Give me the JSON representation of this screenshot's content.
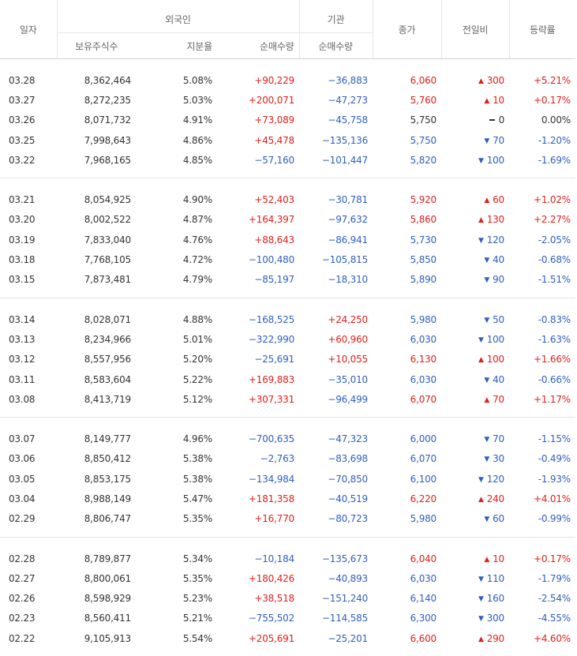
{
  "header": {
    "date": "일자",
    "foreign": "외국인",
    "institution": "기관",
    "holdings": "보유주식수",
    "share_ratio": "지분율",
    "net_buy_foreign": "순매수량",
    "net_buy_inst": "순매수량",
    "close": "종가",
    "change": "전일비",
    "rate": "등락률"
  },
  "colors": {
    "up": "#e0201b",
    "down": "#2f5fbf",
    "flat": "#333333"
  },
  "groups": [
    [
      {
        "date": "03.28",
        "holdings": "8,362,464",
        "ratio": "5.08%",
        "foreign": "+90,229",
        "inst": "−36,883",
        "close": "6,060",
        "dir": "up",
        "change": "300",
        "rate": "+5.21%"
      },
      {
        "date": "03.27",
        "holdings": "8,272,235",
        "ratio": "5.03%",
        "foreign": "+200,071",
        "inst": "−47,273",
        "close": "5,760",
        "dir": "up",
        "change": "10",
        "rate": "+0.17%"
      },
      {
        "date": "03.26",
        "holdings": "8,071,732",
        "ratio": "4.91%",
        "foreign": "+73,089",
        "inst": "−45,758",
        "close": "5,750",
        "dir": "flat",
        "change": "0",
        "rate": "0.00%"
      },
      {
        "date": "03.25",
        "holdings": "7,998,643",
        "ratio": "4.86%",
        "foreign": "+45,478",
        "inst": "−135,136",
        "close": "5,750",
        "dir": "down",
        "change": "70",
        "rate": "-1.20%"
      },
      {
        "date": "03.22",
        "holdings": "7,968,165",
        "ratio": "4.85%",
        "foreign": "−57,160",
        "inst": "−101,447",
        "close": "5,820",
        "dir": "down",
        "change": "100",
        "rate": "-1.69%"
      }
    ],
    [
      {
        "date": "03.21",
        "holdings": "8,054,925",
        "ratio": "4.90%",
        "foreign": "+52,403",
        "inst": "−30,781",
        "close": "5,920",
        "dir": "up",
        "change": "60",
        "rate": "+1.02%"
      },
      {
        "date": "03.20",
        "holdings": "8,002,522",
        "ratio": "4.87%",
        "foreign": "+164,397",
        "inst": "−97,632",
        "close": "5,860",
        "dir": "up",
        "change": "130",
        "rate": "+2.27%"
      },
      {
        "date": "03.19",
        "holdings": "7,833,040",
        "ratio": "4.76%",
        "foreign": "+88,643",
        "inst": "−86,941",
        "close": "5,730",
        "dir": "down",
        "change": "120",
        "rate": "-2.05%"
      },
      {
        "date": "03.18",
        "holdings": "7,768,105",
        "ratio": "4.72%",
        "foreign": "−100,480",
        "inst": "−105,815",
        "close": "5,850",
        "dir": "down",
        "change": "40",
        "rate": "-0.68%"
      },
      {
        "date": "03.15",
        "holdings": "7,873,481",
        "ratio": "4.79%",
        "foreign": "−85,197",
        "inst": "−18,310",
        "close": "5,890",
        "dir": "down",
        "change": "90",
        "rate": "-1.51%"
      }
    ],
    [
      {
        "date": "03.14",
        "holdings": "8,028,071",
        "ratio": "4.88%",
        "foreign": "−168,525",
        "inst": "+24,250",
        "close": "5,980",
        "dir": "down",
        "change": "50",
        "rate": "-0.83%"
      },
      {
        "date": "03.13",
        "holdings": "8,234,966",
        "ratio": "5.01%",
        "foreign": "−322,990",
        "inst": "+60,960",
        "close": "6,030",
        "dir": "down",
        "change": "100",
        "rate": "-1.63%"
      },
      {
        "date": "03.12",
        "holdings": "8,557,956",
        "ratio": "5.20%",
        "foreign": "−25,691",
        "inst": "+10,055",
        "close": "6,130",
        "dir": "up",
        "change": "100",
        "rate": "+1.66%"
      },
      {
        "date": "03.11",
        "holdings": "8,583,604",
        "ratio": "5.22%",
        "foreign": "+169,883",
        "inst": "−35,010",
        "close": "6,030",
        "dir": "down",
        "change": "40",
        "rate": "-0.66%"
      },
      {
        "date": "03.08",
        "holdings": "8,413,719",
        "ratio": "5.12%",
        "foreign": "+307,331",
        "inst": "−96,499",
        "close": "6,070",
        "dir": "up",
        "change": "70",
        "rate": "+1.17%"
      }
    ],
    [
      {
        "date": "03.07",
        "holdings": "8,149,777",
        "ratio": "4.96%",
        "foreign": "−700,635",
        "inst": "−47,323",
        "close": "6,000",
        "dir": "down",
        "change": "70",
        "rate": "-1.15%"
      },
      {
        "date": "03.06",
        "holdings": "8,850,412",
        "ratio": "5.38%",
        "foreign": "−2,763",
        "inst": "−83,698",
        "close": "6,070",
        "dir": "down",
        "change": "30",
        "rate": "-0.49%"
      },
      {
        "date": "03.05",
        "holdings": "8,853,175",
        "ratio": "5.38%",
        "foreign": "−134,984",
        "inst": "−70,850",
        "close": "6,100",
        "dir": "down",
        "change": "120",
        "rate": "-1.93%"
      },
      {
        "date": "03.04",
        "holdings": "8,988,149",
        "ratio": "5.47%",
        "foreign": "+181,358",
        "inst": "−40,519",
        "close": "6,220",
        "dir": "up",
        "change": "240",
        "rate": "+4.01%"
      },
      {
        "date": "02.29",
        "holdings": "8,806,747",
        "ratio": "5.35%",
        "foreign": "+16,770",
        "inst": "−80,723",
        "close": "5,980",
        "dir": "down",
        "change": "60",
        "rate": "-0.99%"
      }
    ],
    [
      {
        "date": "02.28",
        "holdings": "8,789,877",
        "ratio": "5.34%",
        "foreign": "−10,184",
        "inst": "−135,673",
        "close": "6,040",
        "dir": "up",
        "change": "10",
        "rate": "+0.17%"
      },
      {
        "date": "02.27",
        "holdings": "8,800,061",
        "ratio": "5.35%",
        "foreign": "+180,426",
        "inst": "−40,893",
        "close": "6,030",
        "dir": "down",
        "change": "110",
        "rate": "-1.79%"
      },
      {
        "date": "02.26",
        "holdings": "8,598,929",
        "ratio": "5.23%",
        "foreign": "+38,518",
        "inst": "−151,240",
        "close": "6,140",
        "dir": "down",
        "change": "160",
        "rate": "-2.54%"
      },
      {
        "date": "02.23",
        "holdings": "8,560,411",
        "ratio": "5.21%",
        "foreign": "−755,502",
        "inst": "−114,585",
        "close": "6,300",
        "dir": "down",
        "change": "300",
        "rate": "-4.55%"
      },
      {
        "date": "02.22",
        "holdings": "9,105,913",
        "ratio": "5.54%",
        "foreign": "+205,691",
        "inst": "−25,201",
        "close": "6,600",
        "dir": "up",
        "change": "290",
        "rate": "+4.60%"
      }
    ]
  ]
}
